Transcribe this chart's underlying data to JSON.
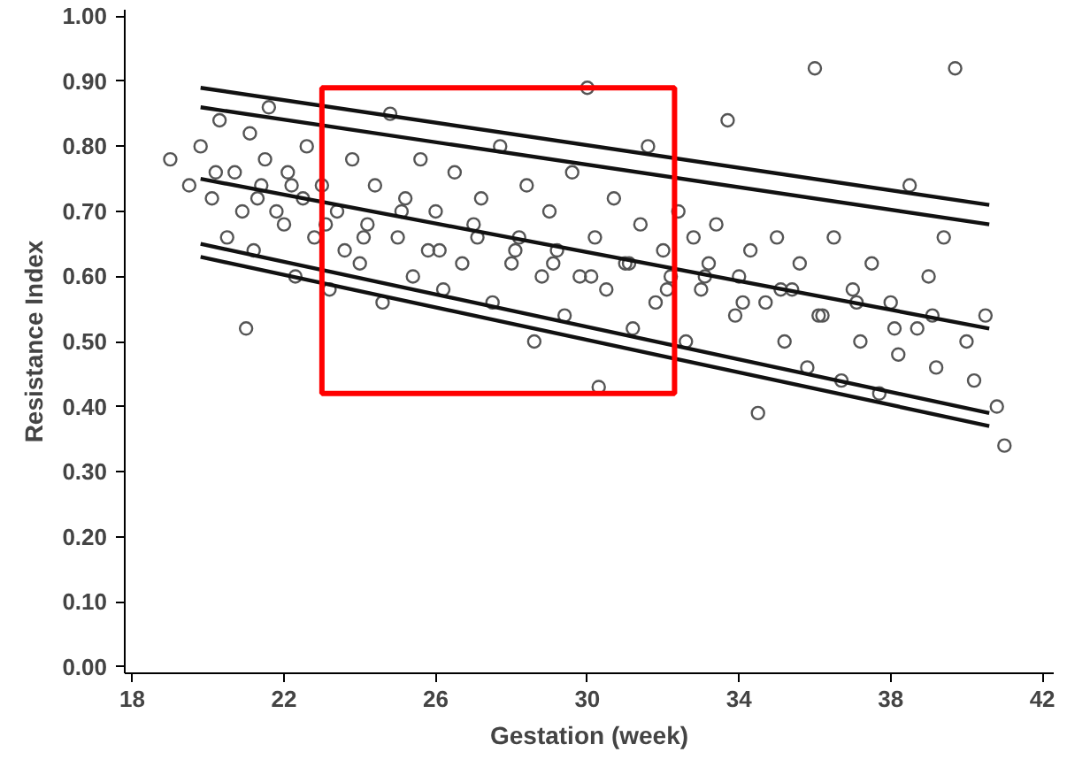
{
  "chart_data": {
    "type": "scatter",
    "xlabel": "Gestation (week)",
    "ylabel": "Resistance Index",
    "xlim": [
      17.8,
      42.3
    ],
    "ylim": [
      -0.01,
      1.01
    ],
    "xticks": [
      18,
      22,
      26,
      30,
      34,
      38,
      42
    ],
    "yticks": [
      {
        "value": 0,
        "label": "0.00"
      },
      {
        "value": 0.1,
        "label": "0.10"
      },
      {
        "value": 0.2,
        "label": "0.20"
      },
      {
        "value": 0.3,
        "label": "0.30"
      },
      {
        "value": 0.4,
        "label": "0.40"
      },
      {
        "value": 0.5,
        "label": "0.50"
      },
      {
        "value": 0.6,
        "label": "0.60"
      },
      {
        "value": 0.7,
        "label": "0.70"
      },
      {
        "value": 0.8,
        "label": "0.80"
      },
      {
        "value": 0.9,
        "label": "0.90"
      },
      {
        "value": 1.0,
        "label": "1.00"
      }
    ],
    "grid": false,
    "series": [
      {
        "marker": "circle",
        "color": "#555555",
        "x": [
          19.0,
          19.5,
          19.8,
          20.1,
          20.3,
          20.5,
          20.7,
          20.9,
          21.0,
          21.1,
          21.2,
          21.4,
          21.5,
          21.6,
          21.8,
          22.0,
          22.1,
          22.3,
          22.5,
          22.6,
          22.8,
          23.0,
          23.2,
          23.4,
          23.6,
          23.8,
          24.0,
          24.2,
          24.4,
          24.6,
          24.8,
          25.0,
          25.2,
          25.4,
          25.6,
          25.8,
          26.0,
          26.2,
          26.5,
          26.7,
          27.0,
          27.2,
          27.5,
          27.7,
          28.0,
          28.2,
          28.4,
          28.6,
          28.8,
          29.0,
          29.2,
          29.4,
          29.6,
          29.8,
          30.0,
          30.2,
          30.3,
          30.5,
          30.7,
          31.0,
          31.2,
          31.4,
          31.6,
          31.8,
          32.0,
          32.2,
          32.4,
          32.6,
          32.8,
          33.0,
          33.2,
          33.4,
          33.7,
          33.9,
          34.0,
          34.3,
          34.5,
          34.7,
          35.0,
          35.2,
          35.4,
          35.6,
          35.8,
          36.0,
          36.2,
          36.5,
          36.7,
          37.0,
          37.2,
          37.5,
          37.7,
          38.0,
          38.2,
          38.5,
          38.7,
          39.0,
          39.2,
          39.4,
          39.7,
          40.0,
          40.2,
          40.5,
          40.8,
          41.0,
          20.2,
          21.3,
          22.2,
          23.1,
          24.1,
          25.1,
          26.1,
          27.1,
          28.1,
          29.1,
          30.1,
          31.1,
          32.1,
          33.1,
          34.1,
          35.1,
          36.1,
          37.1,
          38.1,
          39.1
        ],
        "values": [
          0.78,
          0.74,
          0.8,
          0.72,
          0.84,
          0.66,
          0.76,
          0.7,
          0.52,
          0.82,
          0.64,
          0.74,
          0.78,
          0.86,
          0.7,
          0.68,
          0.76,
          0.6,
          0.72,
          0.8,
          0.66,
          0.74,
          0.58,
          0.7,
          0.64,
          0.78,
          0.62,
          0.68,
          0.74,
          0.56,
          0.85,
          0.66,
          0.72,
          0.6,
          0.78,
          0.64,
          0.7,
          0.58,
          0.76,
          0.62,
          0.68,
          0.72,
          0.56,
          0.8,
          0.62,
          0.66,
          0.74,
          0.5,
          0.6,
          0.7,
          0.64,
          0.54,
          0.76,
          0.6,
          0.89,
          0.66,
          0.43,
          0.58,
          0.72,
          0.62,
          0.52,
          0.68,
          0.8,
          0.56,
          0.64,
          0.6,
          0.7,
          0.5,
          0.66,
          0.58,
          0.62,
          0.68,
          0.84,
          0.54,
          0.6,
          0.64,
          0.39,
          0.56,
          0.66,
          0.5,
          0.58,
          0.62,
          0.46,
          0.92,
          0.54,
          0.66,
          0.44,
          0.58,
          0.5,
          0.62,
          0.42,
          0.56,
          0.48,
          0.74,
          0.52,
          0.6,
          0.46,
          0.66,
          0.92,
          0.5,
          0.44,
          0.54,
          0.4,
          0.34,
          0.76,
          0.72,
          0.74,
          0.68,
          0.66,
          0.7,
          0.64,
          0.66,
          0.64,
          0.62,
          0.6,
          0.62,
          0.58,
          0.6,
          0.56,
          0.58,
          0.54,
          0.56,
          0.52,
          0.54
        ]
      },
      {
        "type": "line",
        "color": "#111111",
        "x": [
          19.8,
          40.6
        ],
        "values": [
          0.89,
          0.71
        ]
      },
      {
        "type": "line",
        "color": "#111111",
        "x": [
          19.8,
          40.6
        ],
        "values": [
          0.86,
          0.68
        ]
      },
      {
        "type": "line",
        "color": "#111111",
        "x": [
          19.8,
          40.6
        ],
        "values": [
          0.75,
          0.52
        ]
      },
      {
        "type": "line",
        "color": "#111111",
        "x": [
          19.8,
          40.6
        ],
        "values": [
          0.65,
          0.39
        ]
      },
      {
        "type": "line",
        "color": "#111111",
        "x": [
          19.8,
          40.6
        ],
        "values": [
          0.63,
          0.37
        ]
      }
    ]
  }
}
